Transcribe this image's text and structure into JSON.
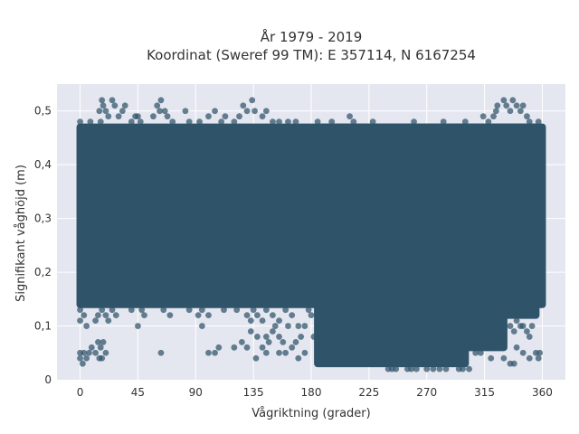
{
  "chart_data": {
    "type": "scatter",
    "title": "År 1979 - 2019",
    "subtitle": "Koordinat (Sweref 99 TM): E 357114, N 6167254",
    "xlabel": "Vågriktning (grader)",
    "ylabel": "Signifikant våghöjd (m)",
    "xlim": [
      -18,
      378
    ],
    "ylim": [
      0,
      0.55
    ],
    "x_ticks": [
      0,
      45,
      90,
      135,
      180,
      225,
      270,
      315,
      360
    ],
    "x_tick_labels": [
      "0",
      "45",
      "90",
      "135",
      "180",
      "225",
      "270",
      "315",
      "360"
    ],
    "y_ticks": [
      0,
      0.1,
      0.2,
      0.3,
      0.4,
      0.5
    ],
    "y_tick_labels": [
      "0",
      "0,1",
      "0,2",
      "0,3",
      "0,4",
      "0,5"
    ],
    "grid": true,
    "marker_color": "#2f5369",
    "plot_background": "#e5e7f0",
    "dense_regions": [
      {
        "x_min": 0,
        "x_max": 360,
        "y_min": 0.14,
        "y_max": 0.47
      },
      {
        "x_min": 185,
        "x_max": 300,
        "y_min": 0.03,
        "y_max": 0.47
      },
      {
        "x_min": 300,
        "x_max": 330,
        "y_min": 0.06,
        "y_max": 0.47
      },
      {
        "x_min": 330,
        "x_max": 355,
        "y_min": 0.12,
        "y_max": 0.47
      }
    ],
    "points": [
      [
        0,
        0.48
      ],
      [
        3,
        0.47
      ],
      [
        4,
        0.44
      ],
      [
        8,
        0.48
      ],
      [
        12,
        0.47
      ],
      [
        15,
        0.5
      ],
      [
        16,
        0.48
      ],
      [
        17,
        0.52
      ],
      [
        18,
        0.51
      ],
      [
        20,
        0.5
      ],
      [
        22,
        0.49
      ],
      [
        25,
        0.52
      ],
      [
        27,
        0.51
      ],
      [
        30,
        0.49
      ],
      [
        33,
        0.5
      ],
      [
        35,
        0.51
      ],
      [
        40,
        0.48
      ],
      [
        43,
        0.49
      ],
      [
        45,
        0.49
      ],
      [
        47,
        0.48
      ],
      [
        50,
        0.47
      ],
      [
        57,
        0.49
      ],
      [
        60,
        0.51
      ],
      [
        62,
        0.5
      ],
      [
        63,
        0.52
      ],
      [
        66,
        0.5
      ],
      [
        68,
        0.49
      ],
      [
        72,
        0.48
      ],
      [
        82,
        0.5
      ],
      [
        85,
        0.48
      ],
      [
        93,
        0.48
      ],
      [
        100,
        0.49
      ],
      [
        105,
        0.5
      ],
      [
        110,
        0.48
      ],
      [
        113,
        0.49
      ],
      [
        120,
        0.48
      ],
      [
        124,
        0.49
      ],
      [
        127,
        0.51
      ],
      [
        130,
        0.5
      ],
      [
        134,
        0.52
      ],
      [
        136,
        0.5
      ],
      [
        142,
        0.49
      ],
      [
        145,
        0.5
      ],
      [
        150,
        0.48
      ],
      [
        155,
        0.48
      ],
      [
        162,
        0.48
      ],
      [
        168,
        0.48
      ],
      [
        176,
        0.47
      ],
      [
        185,
        0.48
      ],
      [
        190,
        0.47
      ],
      [
        196,
        0.48
      ],
      [
        210,
        0.49
      ],
      [
        213,
        0.48
      ],
      [
        228,
        0.48
      ],
      [
        250,
        0.47
      ],
      [
        260,
        0.48
      ],
      [
        268,
        0.47
      ],
      [
        283,
        0.48
      ],
      [
        294,
        0.47
      ],
      [
        300,
        0.48
      ],
      [
        310,
        0.47
      ],
      [
        314,
        0.49
      ],
      [
        318,
        0.48
      ],
      [
        322,
        0.49
      ],
      [
        324,
        0.5
      ],
      [
        325,
        0.51
      ],
      [
        330,
        0.52
      ],
      [
        332,
        0.51
      ],
      [
        335,
        0.5
      ],
      [
        337,
        0.52
      ],
      [
        340,
        0.51
      ],
      [
        343,
        0.5
      ],
      [
        345,
        0.51
      ],
      [
        348,
        0.49
      ],
      [
        350,
        0.48
      ],
      [
        352,
        0.47
      ],
      [
        357,
        0.48
      ],
      [
        0,
        0.13
      ],
      [
        0,
        0.11
      ],
      [
        3,
        0.12
      ],
      [
        5,
        0.1
      ],
      [
        8,
        0.14
      ],
      [
        12,
        0.11
      ],
      [
        14,
        0.12
      ],
      [
        17,
        0.13
      ],
      [
        20,
        0.12
      ],
      [
        22,
        0.11
      ],
      [
        25,
        0.13
      ],
      [
        28,
        0.12
      ],
      [
        33,
        0.14
      ],
      [
        40,
        0.13
      ],
      [
        45,
        0.14
      ],
      [
        48,
        0.13
      ],
      [
        50,
        0.12
      ],
      [
        55,
        0.14
      ],
      [
        62,
        0.14
      ],
      [
        65,
        0.13
      ],
      [
        70,
        0.12
      ],
      [
        78,
        0.14
      ],
      [
        85,
        0.13
      ],
      [
        90,
        0.14
      ],
      [
        92,
        0.12
      ],
      [
        95,
        0.13
      ],
      [
        100,
        0.12
      ],
      [
        102,
        0.14
      ],
      [
        112,
        0.13
      ],
      [
        118,
        0.14
      ],
      [
        122,
        0.13
      ],
      [
        125,
        0.14
      ],
      [
        130,
        0.12
      ],
      [
        133,
        0.11
      ],
      [
        135,
        0.13
      ],
      [
        138,
        0.12
      ],
      [
        142,
        0.11
      ],
      [
        145,
        0.13
      ],
      [
        150,
        0.12
      ],
      [
        152,
        0.1
      ],
      [
        155,
        0.11
      ],
      [
        160,
        0.13
      ],
      [
        162,
        0.1
      ],
      [
        165,
        0.12
      ],
      [
        170,
        0.1
      ],
      [
        172,
        0.08
      ],
      [
        175,
        0.1
      ],
      [
        178,
        0.13
      ],
      [
        180,
        0.12
      ],
      [
        182,
        0.08
      ],
      [
        185,
        0.06
      ],
      [
        186,
        0.05
      ],
      [
        45,
        0.1
      ],
      [
        95,
        0.1
      ],
      [
        133,
        0.09
      ],
      [
        138,
        0.08
      ],
      [
        145,
        0.08
      ],
      [
        147,
        0.07
      ],
      [
        150,
        0.09
      ],
      [
        155,
        0.08
      ],
      [
        158,
        0.07
      ],
      [
        160,
        0.05
      ],
      [
        165,
        0.06
      ],
      [
        168,
        0.07
      ],
      [
        170,
        0.04
      ],
      [
        175,
        0.05
      ],
      [
        120,
        0.06
      ],
      [
        126,
        0.07
      ],
      [
        130,
        0.06
      ],
      [
        142,
        0.06
      ],
      [
        155,
        0.05
      ],
      [
        137,
        0.04
      ],
      [
        145,
        0.05
      ],
      [
        63,
        0.05
      ],
      [
        105,
        0.05
      ],
      [
        108,
        0.06
      ],
      [
        100,
        0.05
      ],
      [
        0,
        0.04
      ],
      [
        0,
        0.05
      ],
      [
        2,
        0.03
      ],
      [
        3,
        0.05
      ],
      [
        5,
        0.04
      ],
      [
        7,
        0.05
      ],
      [
        9,
        0.06
      ],
      [
        12,
        0.05
      ],
      [
        14,
        0.07
      ],
      [
        16,
        0.06
      ],
      [
        17,
        0.04
      ],
      [
        18,
        0.07
      ],
      [
        20,
        0.05
      ],
      [
        15,
        0.04
      ],
      [
        305,
        0.06
      ],
      [
        308,
        0.05
      ],
      [
        310,
        0.07
      ],
      [
        312,
        0.05
      ],
      [
        316,
        0.08
      ],
      [
        320,
        0.06
      ],
      [
        322,
        0.1
      ],
      [
        325,
        0.09
      ],
      [
        328,
        0.08
      ],
      [
        330,
        0.07
      ],
      [
        335,
        0.1
      ],
      [
        338,
        0.09
      ],
      [
        340,
        0.11
      ],
      [
        343,
        0.1
      ],
      [
        345,
        0.1
      ],
      [
        348,
        0.09
      ],
      [
        350,
        0.08
      ],
      [
        352,
        0.1
      ],
      [
        355,
        0.05
      ],
      [
        357,
        0.04
      ],
      [
        358,
        0.05
      ],
      [
        340,
        0.06
      ],
      [
        345,
        0.05
      ],
      [
        350,
        0.04
      ],
      [
        320,
        0.04
      ],
      [
        330,
        0.04
      ],
      [
        335,
        0.03
      ],
      [
        338,
        0.03
      ],
      [
        300,
        0.1
      ],
      [
        305,
        0.11
      ],
      [
        315,
        0.12
      ],
      [
        325,
        0.12
      ],
      [
        335,
        0.13
      ],
      [
        345,
        0.12
      ],
      [
        190,
        0.04
      ],
      [
        193,
        0.05
      ],
      [
        195,
        0.06
      ],
      [
        198,
        0.05
      ],
      [
        240,
        0.02
      ],
      [
        243,
        0.02
      ],
      [
        246,
        0.02
      ],
      [
        255,
        0.02
      ],
      [
        258,
        0.02
      ],
      [
        262,
        0.02
      ],
      [
        270,
        0.02
      ],
      [
        275,
        0.02
      ],
      [
        280,
        0.02
      ],
      [
        285,
        0.02
      ],
      [
        295,
        0.02
      ],
      [
        298,
        0.02
      ],
      [
        303,
        0.02
      ],
      [
        297,
        0.13
      ],
      [
        302,
        0.12
      ],
      [
        296,
        0.15
      ],
      [
        293,
        0.14
      ],
      [
        300,
        0.15
      ],
      [
        160,
        0.15
      ],
      [
        163,
        0.14
      ],
      [
        168,
        0.16
      ],
      [
        172,
        0.15
      ],
      [
        175,
        0.14
      ],
      [
        178,
        0.16
      ],
      [
        170,
        0.35
      ],
      [
        168,
        0.33
      ],
      [
        166,
        0.3
      ],
      [
        172,
        0.25
      ],
      [
        175,
        0.3
      ],
      [
        178,
        0.27
      ],
      [
        200,
        0.15
      ],
      [
        202,
        0.16
      ],
      [
        207,
        0.14
      ],
      [
        211,
        0.15
      ],
      [
        214,
        0.13
      ]
    ]
  }
}
